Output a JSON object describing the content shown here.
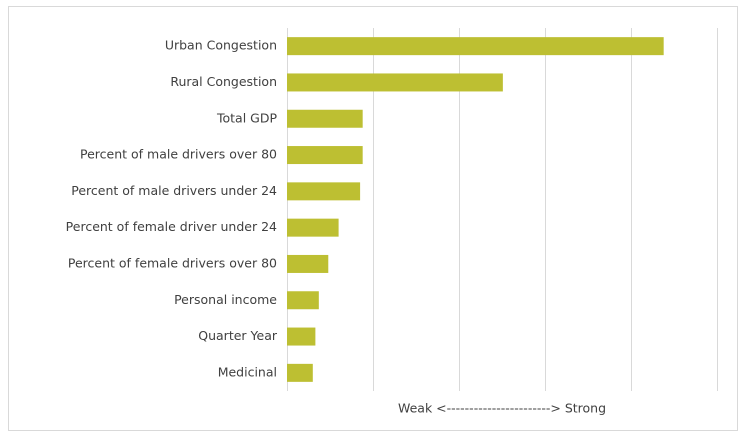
{
  "chart_data": {
    "type": "hbar",
    "categories": [
      "Urban Congestion",
      "Rural Congestion",
      "Total GDP",
      "Percent of male drivers over 80",
      "Percent of male drivers under 24",
      "Percent of female driver under 24",
      "Percent of female drivers over 80",
      "Personal income",
      "Quarter Year",
      "Medicinal"
    ],
    "values": [
      4.38,
      2.51,
      0.88,
      0.88,
      0.85,
      0.6,
      0.48,
      0.37,
      0.33,
      0.3
    ],
    "color": "#bdbf32",
    "xlabel": "Weak <-----------------------> Strong",
    "xlim": [
      0,
      5
    ],
    "xticks": [
      0,
      1,
      2,
      3,
      4,
      5
    ],
    "grid": true
  }
}
